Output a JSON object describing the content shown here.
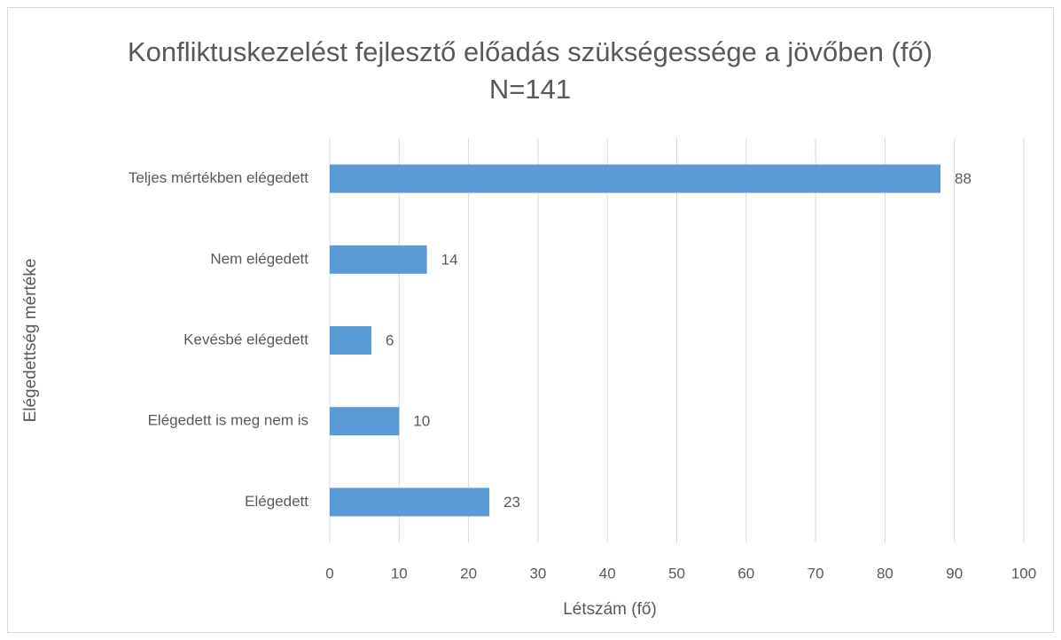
{
  "chart_data": {
    "type": "bar",
    "orientation": "horizontal",
    "title": "Konfliktuskezelést fejlesztő előadás szükségessége a jövőben (fő) N=141",
    "xlabel": "Létszám (fő)",
    "ylabel": "Elégedettség mértéke",
    "categories": [
      "Teljes mértékben elégedett",
      "Nem elégedett",
      "Kevésbé elégedett",
      "Elégedett is meg nem is",
      "Elégedett"
    ],
    "values": [
      88,
      14,
      6,
      10,
      23
    ],
    "color": "#5b9bd5",
    "xlim": [
      0,
      100
    ],
    "xticks": [
      0,
      10,
      20,
      30,
      40,
      50,
      60,
      70,
      80,
      90,
      100
    ],
    "grid": true
  }
}
